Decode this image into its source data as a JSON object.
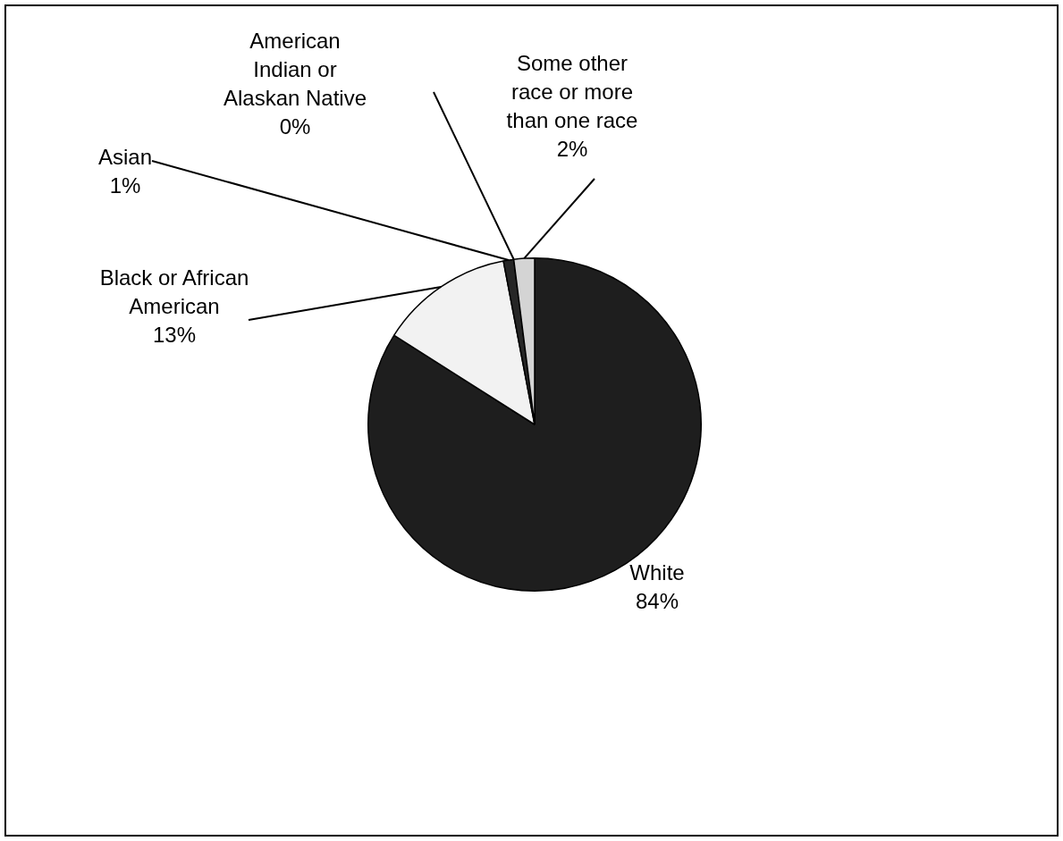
{
  "chart_data": {
    "type": "pie",
    "categories": [
      "White",
      "Black or African American",
      "Asian",
      "American Indian or Alaskan Native",
      "Some other race or more than one race"
    ],
    "values": [
      84,
      13,
      1,
      0,
      2
    ],
    "colors": [
      "#1e1e1e",
      "#f2f2f2",
      "#262626",
      "#3a3a3a",
      "#d4d4d4"
    ],
    "value_labels": [
      "84%",
      "13%",
      "1%",
      "0%",
      "2%"
    ],
    "legend": false
  }
}
